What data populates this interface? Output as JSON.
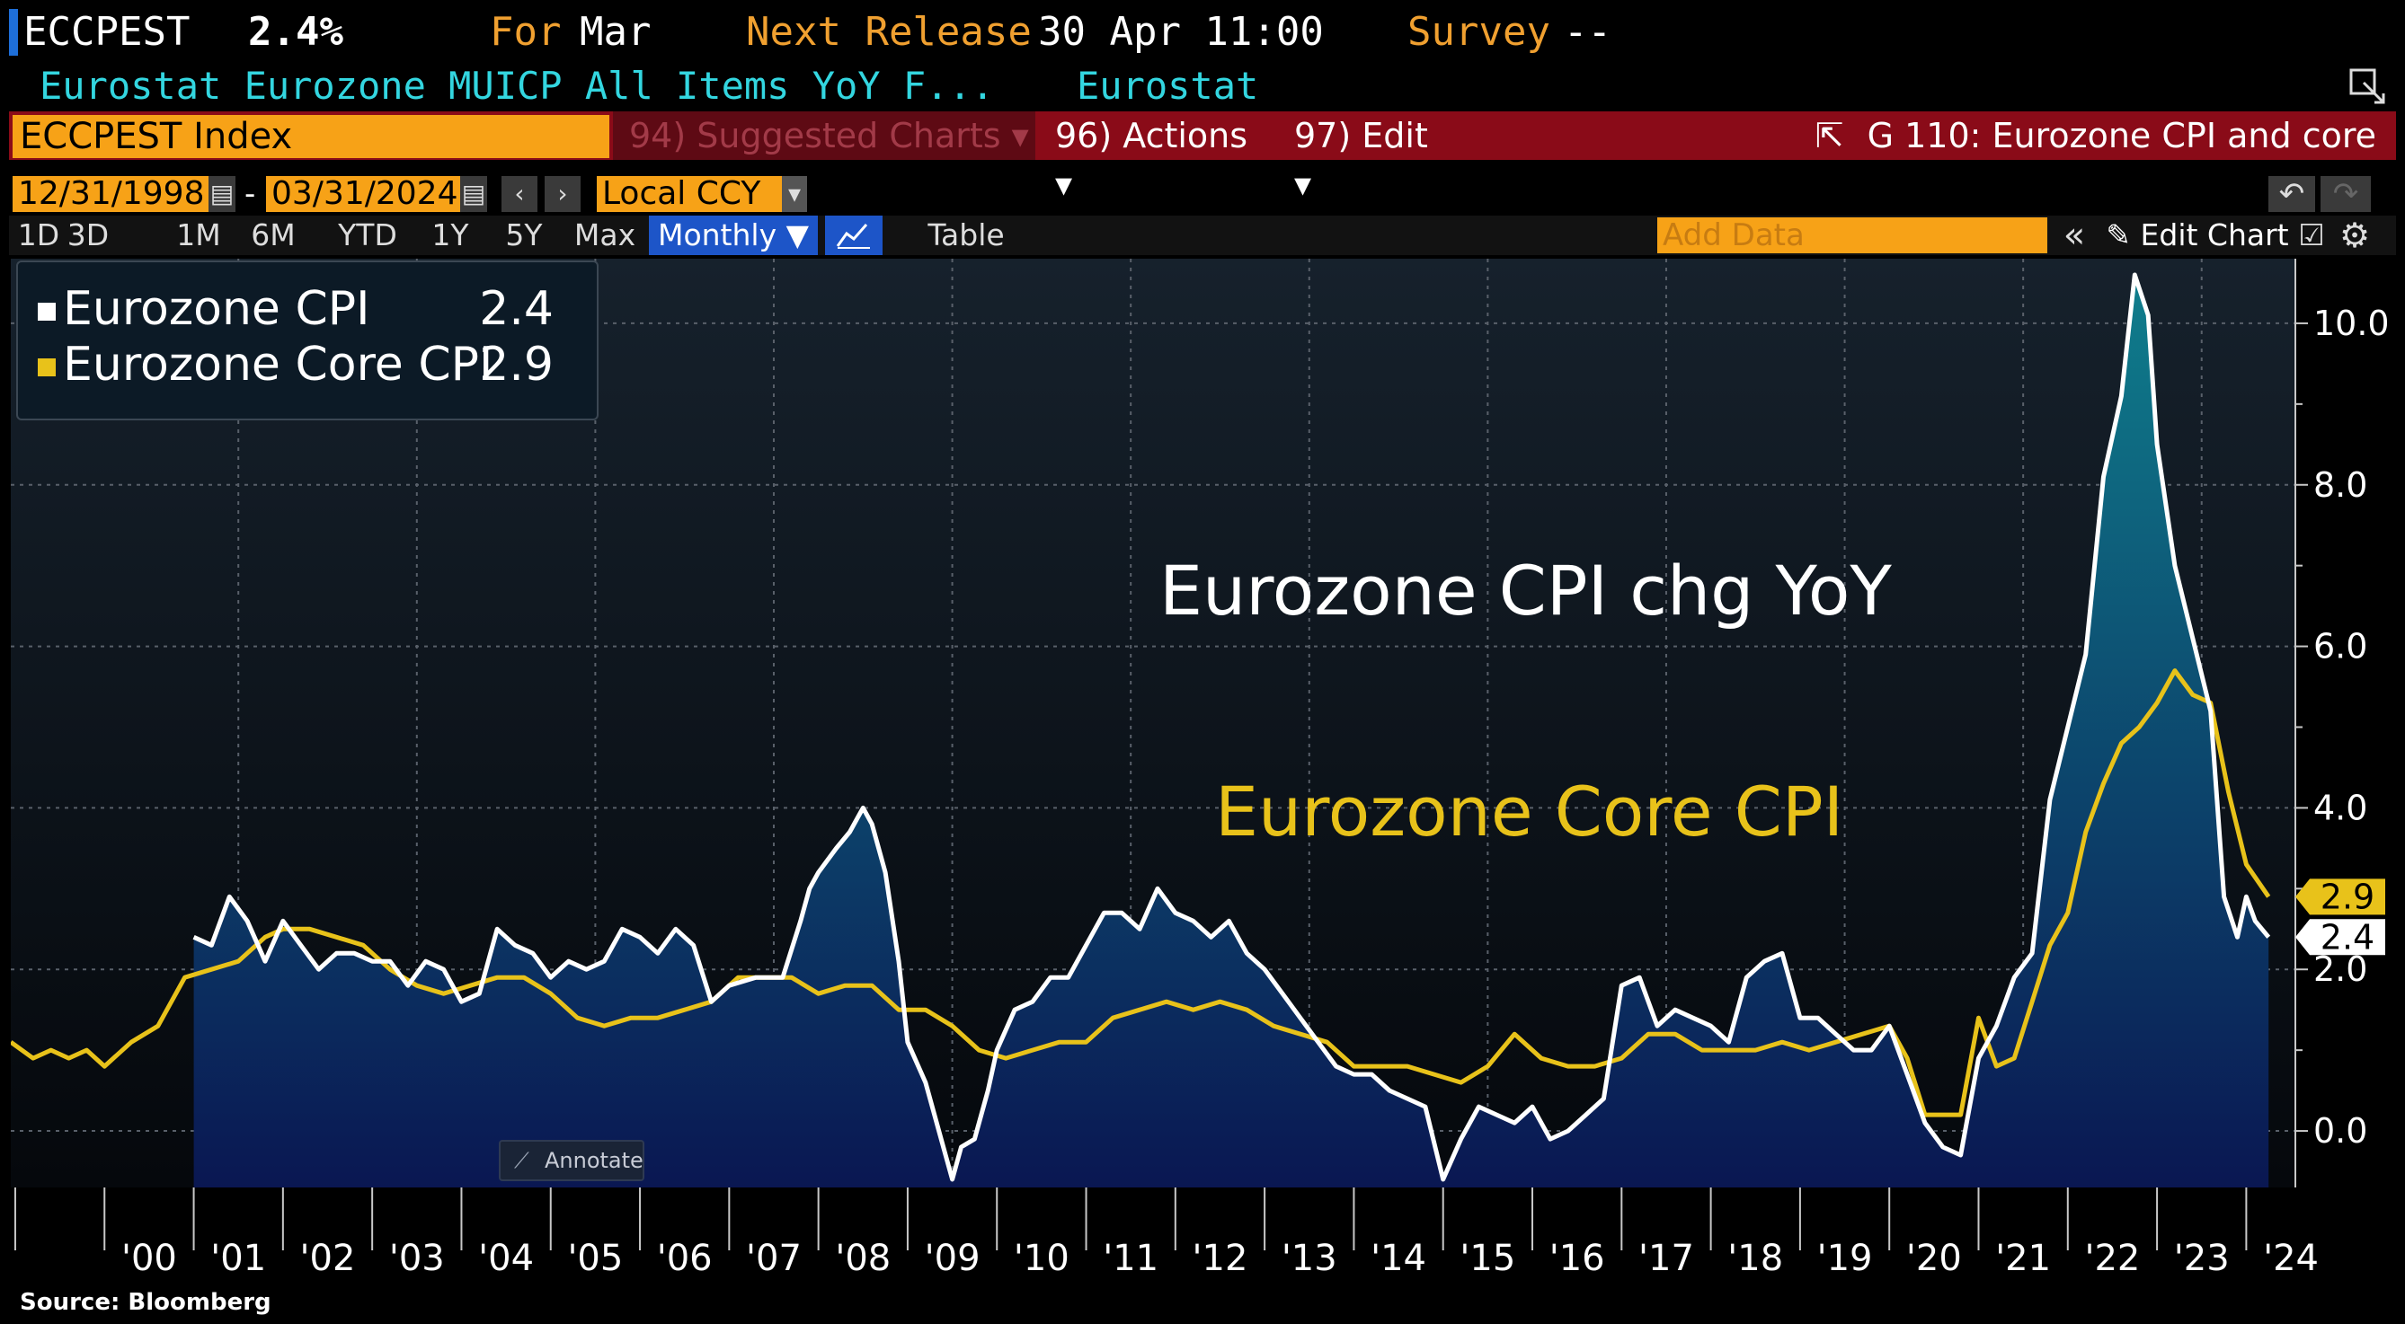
{
  "header": {
    "ticker": "ECCPEST",
    "value": "2.4%",
    "for_label": "For",
    "for_value": "Mar",
    "next_release_label": "Next Release",
    "next_release_value": "30 Apr 11:00",
    "survey_label": "Survey",
    "survey_value": "--",
    "description": "Eurostat Eurozone MUICP All Items YoY F...",
    "source_name": "Eurostat"
  },
  "toolbar": {
    "security": "ECCPEST Index",
    "suggested_charts": "94) Suggested Charts",
    "actions": "96) Actions",
    "edit": "97) Edit",
    "chart_title": "G 110: Eurozone CPI and core",
    "start_date": "12/31/1998",
    "date_sep": "-",
    "end_date": "03/31/2024",
    "currency": "Local CCY",
    "ranges": [
      "1D",
      "3D",
      "1M",
      "6M",
      "YTD",
      "1Y",
      "5Y",
      "Max"
    ],
    "periodicity": "Monthly",
    "table": "Table",
    "add_data_placeholder": "Add Data",
    "edit_chart": "Edit Chart"
  },
  "colors": {
    "cpi": "#ffffff",
    "core": "#e8c21a",
    "accent_orange": "#f7a217",
    "bar_red": "#8a0b18",
    "header_orange": "#f0a030",
    "header_cyan": "#33d6e0",
    "area_top": "#0f7d8c",
    "area_bottom": "#0a1752"
  },
  "chart_data": {
    "type": "area",
    "title": "",
    "x_tick_labels": [
      "'00",
      "'01",
      "'02",
      "'03",
      "'04",
      "'05",
      "'06",
      "'07",
      "'08",
      "'09",
      "'10",
      "'11",
      "'12",
      "'13",
      "'14",
      "'15",
      "'16",
      "'17",
      "'18",
      "'19",
      "'20",
      "'21",
      "'22",
      "'23",
      "'24"
    ],
    "x_tick_years": [
      2000,
      2001,
      2002,
      2003,
      2004,
      2005,
      2006,
      2007,
      2008,
      2009,
      2010,
      2011,
      2012,
      2013,
      2014,
      2015,
      2016,
      2017,
      2018,
      2019,
      2020,
      2021,
      2022,
      2023,
      2024
    ],
    "y_ticks": [
      0.0,
      2.0,
      4.0,
      6.0,
      8.0,
      10.0
    ],
    "y_tick_labels": [
      "0.0",
      "2.0",
      "4.0",
      "6.0",
      "8.0",
      "10.0"
    ],
    "ylim": [
      -0.7,
      10.8
    ],
    "xlim": [
      1998.95,
      2024.55
    ],
    "series": [
      {
        "name": "Eurozone CPI",
        "last_value": "2.4",
        "x": [
          2001.0,
          2001.2,
          2001.4,
          2001.6,
          2001.8,
          2002.0,
          2002.2,
          2002.4,
          2002.6,
          2002.8,
          2003.0,
          2003.2,
          2003.4,
          2003.6,
          2003.8,
          2004.0,
          2004.2,
          2004.4,
          2004.6,
          2004.8,
          2005.0,
          2005.2,
          2005.4,
          2005.6,
          2005.8,
          2006.0,
          2006.2,
          2006.4,
          2006.6,
          2006.8,
          2007.0,
          2007.3,
          2007.6,
          2007.8,
          2007.9,
          2008.0,
          2008.2,
          2008.35,
          2008.5,
          2008.6,
          2008.75,
          2008.9,
          2009.0,
          2009.2,
          2009.35,
          2009.5,
          2009.6,
          2009.75,
          2009.9,
          2010.0,
          2010.2,
          2010.4,
          2010.6,
          2010.8,
          2011.0,
          2011.2,
          2011.4,
          2011.6,
          2011.8,
          2012.0,
          2012.2,
          2012.4,
          2012.6,
          2012.8,
          2013.0,
          2013.2,
          2013.4,
          2013.6,
          2013.8,
          2014.0,
          2014.2,
          2014.4,
          2014.6,
          2014.8,
          2015.0,
          2015.2,
          2015.4,
          2015.6,
          2015.8,
          2016.0,
          2016.2,
          2016.4,
          2016.6,
          2016.8,
          2017.0,
          2017.2,
          2017.4,
          2017.6,
          2017.8,
          2018.0,
          2018.2,
          2018.4,
          2018.6,
          2018.8,
          2019.0,
          2019.2,
          2019.4,
          2019.6,
          2019.8,
          2020.0,
          2020.2,
          2020.4,
          2020.6,
          2020.8,
          2021.0,
          2021.2,
          2021.4,
          2021.6,
          2021.8,
          2022.0,
          2022.2,
          2022.4,
          2022.6,
          2022.75,
          2022.9,
          2023.0,
          2023.2,
          2023.4,
          2023.6,
          2023.75,
          2023.9,
          2024.0,
          2024.1,
          2024.25
        ],
        "values": [
          2.4,
          2.3,
          2.9,
          2.6,
          2.1,
          2.6,
          2.3,
          2.0,
          2.2,
          2.2,
          2.1,
          2.1,
          1.8,
          2.1,
          2.0,
          1.6,
          1.7,
          2.5,
          2.3,
          2.2,
          1.9,
          2.1,
          2.0,
          2.1,
          2.5,
          2.4,
          2.2,
          2.5,
          2.3,
          1.6,
          1.8,
          1.9,
          1.9,
          2.6,
          3.0,
          3.2,
          3.5,
          3.7,
          4.0,
          3.8,
          3.2,
          2.1,
          1.1,
          0.6,
          0.0,
          -0.6,
          -0.2,
          -0.1,
          0.5,
          1.0,
          1.5,
          1.6,
          1.9,
          1.9,
          2.3,
          2.7,
          2.7,
          2.5,
          3.0,
          2.7,
          2.6,
          2.4,
          2.6,
          2.2,
          2.0,
          1.7,
          1.4,
          1.1,
          0.8,
          0.7,
          0.7,
          0.5,
          0.4,
          0.3,
          -0.6,
          -0.1,
          0.3,
          0.2,
          0.1,
          0.3,
          -0.1,
          0.0,
          0.2,
          0.4,
          1.8,
          1.9,
          1.3,
          1.5,
          1.4,
          1.3,
          1.1,
          1.9,
          2.1,
          2.2,
          1.4,
          1.4,
          1.2,
          1.0,
          1.0,
          1.3,
          0.7,
          0.1,
          -0.2,
          -0.3,
          0.9,
          1.3,
          1.9,
          2.2,
          4.1,
          5.0,
          5.9,
          8.1,
          9.1,
          10.6,
          10.1,
          8.5,
          7.0,
          6.1,
          5.2,
          2.9,
          2.4,
          2.9,
          2.6,
          2.4
        ]
      },
      {
        "name": "Eurozone Core CPI",
        "last_value": "2.9",
        "x": [
          1998.95,
          1999.2,
          1999.4,
          1999.6,
          1999.8,
          2000.0,
          2000.3,
          2000.6,
          2000.9,
          2001.2,
          2001.5,
          2001.8,
          2002.0,
          2002.3,
          2002.6,
          2002.9,
          2003.2,
          2003.5,
          2003.8,
          2004.1,
          2004.4,
          2004.7,
          2005.0,
          2005.3,
          2005.6,
          2005.9,
          2006.2,
          2006.5,
          2006.8,
          2007.1,
          2007.4,
          2007.7,
          2008.0,
          2008.3,
          2008.6,
          2008.9,
          2009.2,
          2009.5,
          2009.8,
          2010.1,
          2010.4,
          2010.7,
          2011.0,
          2011.3,
          2011.6,
          2011.9,
          2012.2,
          2012.5,
          2012.8,
          2013.1,
          2013.4,
          2013.7,
          2014.0,
          2014.3,
          2014.6,
          2014.9,
          2015.2,
          2015.5,
          2015.8,
          2016.1,
          2016.4,
          2016.7,
          2017.0,
          2017.3,
          2017.6,
          2017.9,
          2018.2,
          2018.5,
          2018.8,
          2019.1,
          2019.4,
          2019.7,
          2020.0,
          2020.2,
          2020.4,
          2020.6,
          2020.8,
          2021.0,
          2021.2,
          2021.4,
          2021.6,
          2021.8,
          2022.0,
          2022.2,
          2022.4,
          2022.6,
          2022.8,
          2023.0,
          2023.2,
          2023.4,
          2023.6,
          2023.8,
          2024.0,
          2024.25
        ],
        "values": [
          1.1,
          0.9,
          1.0,
          0.9,
          1.0,
          0.8,
          1.1,
          1.3,
          1.9,
          2.0,
          2.1,
          2.4,
          2.5,
          2.5,
          2.4,
          2.3,
          2.0,
          1.8,
          1.7,
          1.8,
          1.9,
          1.9,
          1.7,
          1.4,
          1.3,
          1.4,
          1.4,
          1.5,
          1.6,
          1.9,
          1.9,
          1.9,
          1.7,
          1.8,
          1.8,
          1.5,
          1.5,
          1.3,
          1.0,
          0.9,
          1.0,
          1.1,
          1.1,
          1.4,
          1.5,
          1.6,
          1.5,
          1.6,
          1.5,
          1.3,
          1.2,
          1.1,
          0.8,
          0.8,
          0.8,
          0.7,
          0.6,
          0.8,
          1.2,
          0.9,
          0.8,
          0.8,
          0.9,
          1.2,
          1.2,
          1.0,
          1.0,
          1.0,
          1.1,
          1.0,
          1.1,
          1.2,
          1.3,
          0.9,
          0.2,
          0.2,
          0.2,
          1.4,
          0.8,
          0.9,
          1.6,
          2.3,
          2.7,
          3.7,
          4.3,
          4.8,
          5.0,
          5.3,
          5.7,
          5.4,
          5.3,
          4.2,
          3.3,
          2.9
        ]
      }
    ],
    "annotations": [
      {
        "text": "Eurozone CPI chg YoY",
        "color": "#ffffff"
      },
      {
        "text": "Eurozone Core CPI",
        "color": "#e8c21a"
      }
    ],
    "annotate_button": "Annotate",
    "source": "Source: Bloomberg"
  }
}
